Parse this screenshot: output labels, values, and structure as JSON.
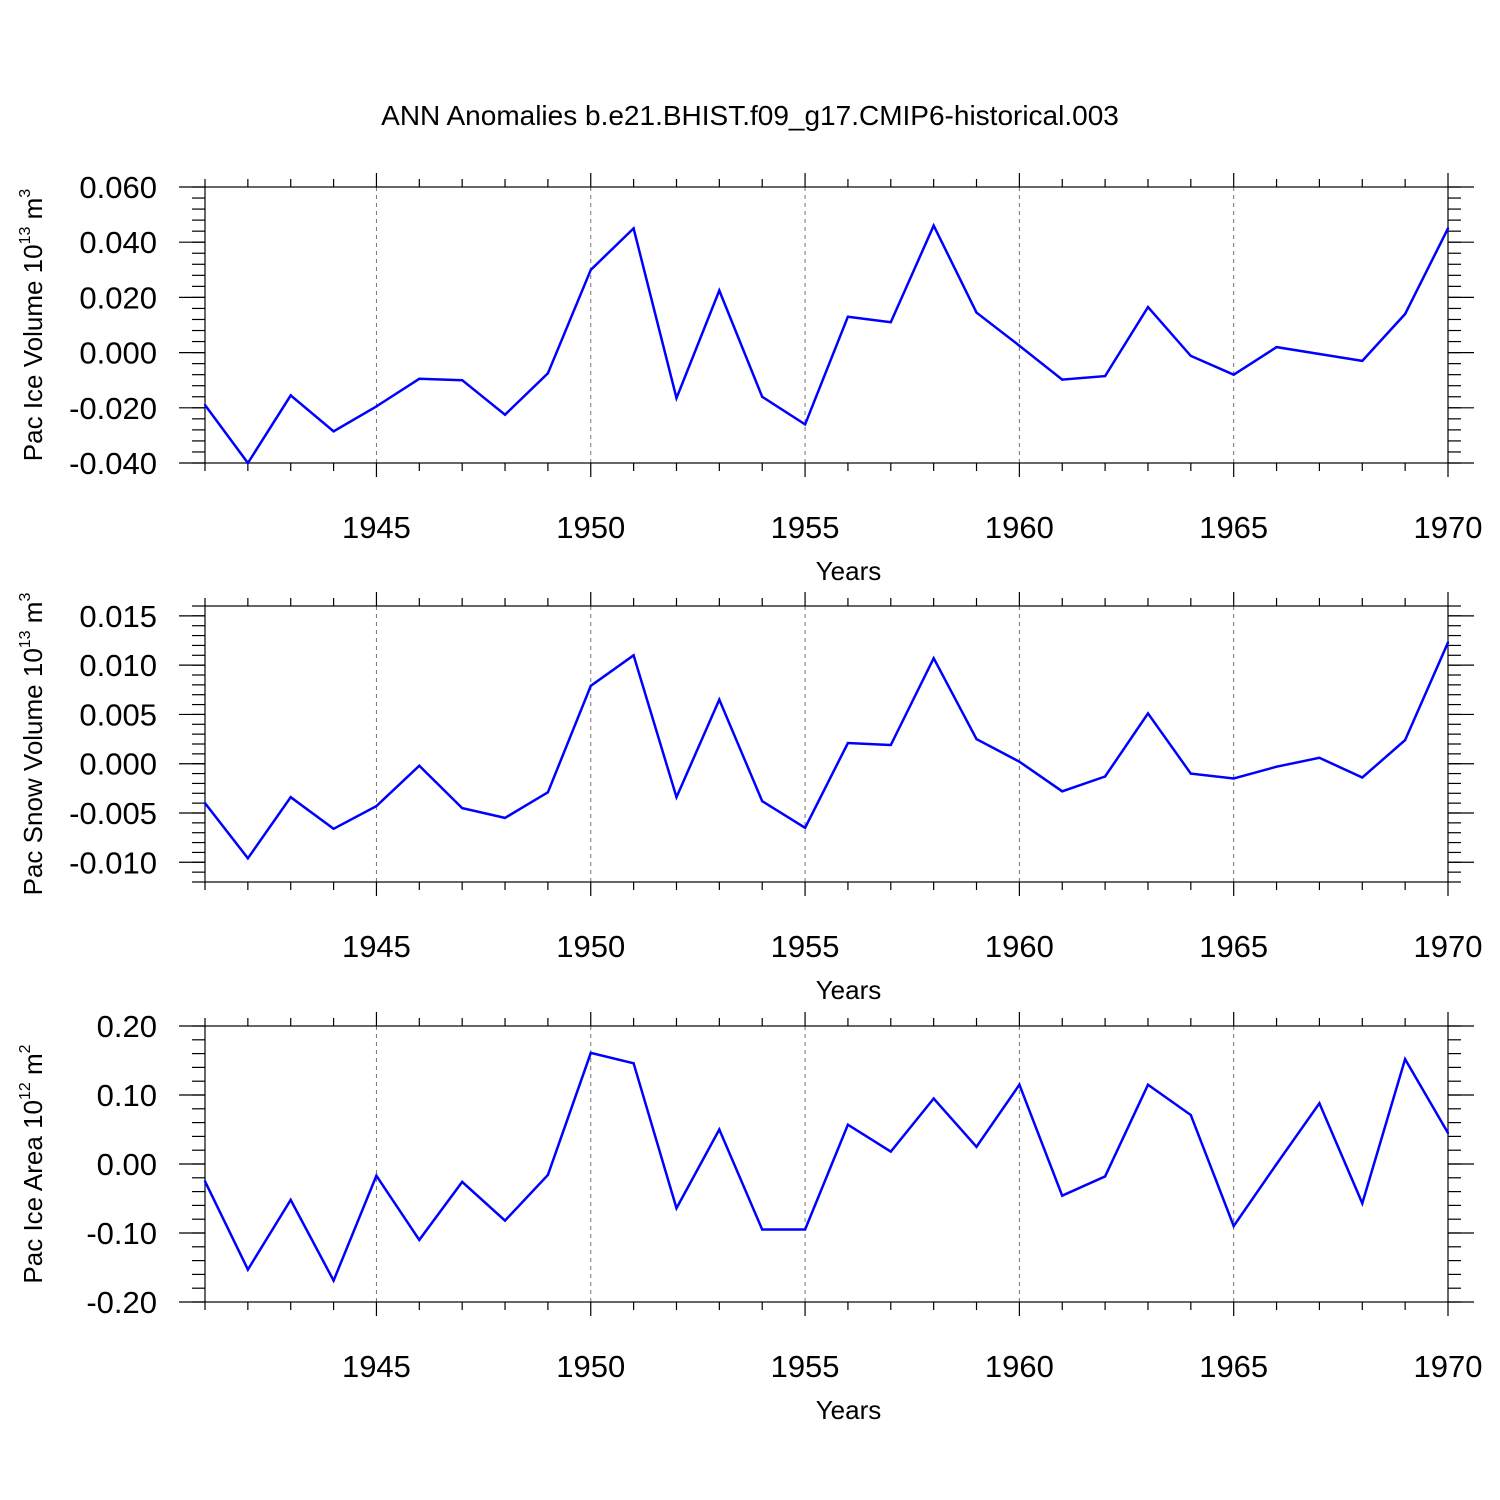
{
  "title": "ANN Anomalies b.e21.BHIST.f09_g17.CMIP6-historical.003",
  "colors": {
    "line": "#0000ff",
    "axes": "#000000",
    "background": "#ffffff"
  },
  "chart_data": [
    {
      "type": "line",
      "id": "ice-volume",
      "ylabel_main": "Pac Ice Volume 10",
      "ylabel_sup": "13",
      "ylabel_unit": " m",
      "ylabel_unit_sup": "3",
      "xlabel": "Years",
      "xlim": [
        1941,
        1970
      ],
      "ylim": [
        -0.04,
        0.06
      ],
      "xticks": [
        1945,
        1950,
        1955,
        1960,
        1965,
        1970
      ],
      "xtick_labels": [
        "1945",
        "1950",
        "1955",
        "1960",
        "1965",
        "1970"
      ],
      "yticks": [
        -0.04,
        -0.02,
        0.0,
        0.02,
        0.04,
        0.06
      ],
      "ytick_labels": [
        "-0.040",
        "-0.020",
        "0.000",
        "0.020",
        "0.040",
        "0.060"
      ],
      "x": [
        1941,
        1942,
        1943,
        1944,
        1945,
        1946,
        1947,
        1948,
        1949,
        1950,
        1951,
        1952,
        1953,
        1954,
        1955,
        1956,
        1957,
        1958,
        1959,
        1960,
        1961,
        1962,
        1963,
        1964,
        1965,
        1966,
        1967,
        1968,
        1969,
        1970
      ],
      "values": [
        -0.019,
        -0.04,
        -0.0155,
        -0.0285,
        -0.0195,
        -0.0095,
        -0.01,
        -0.0225,
        -0.0075,
        0.03,
        0.045,
        -0.0165,
        0.0225,
        -0.016,
        -0.026,
        0.013,
        0.011,
        0.046,
        0.0145,
        0.0025,
        -0.0098,
        -0.0085,
        0.0165,
        -0.0012,
        -0.008,
        0.002,
        -0.0005,
        -0.003,
        0.014,
        0.045
      ]
    },
    {
      "type": "line",
      "id": "snow-volume",
      "ylabel_main": "Pac Snow Volume 10",
      "ylabel_sup": "13",
      "ylabel_unit": " m",
      "ylabel_unit_sup": "3",
      "xlabel": "Years",
      "xlim": [
        1941,
        1970
      ],
      "ylim": [
        -0.012,
        0.016
      ],
      "xticks": [
        1945,
        1950,
        1955,
        1960,
        1965,
        1970
      ],
      "xtick_labels": [
        "1945",
        "1950",
        "1955",
        "1960",
        "1965",
        "1970"
      ],
      "yticks": [
        -0.01,
        -0.005,
        0.0,
        0.005,
        0.01,
        0.015
      ],
      "ytick_labels": [
        "-0.010",
        "-0.005",
        "0.000",
        "0.005",
        "0.010",
        "0.015"
      ],
      "x": [
        1941,
        1942,
        1943,
        1944,
        1945,
        1946,
        1947,
        1948,
        1949,
        1950,
        1951,
        1952,
        1953,
        1954,
        1955,
        1956,
        1957,
        1958,
        1959,
        1960,
        1961,
        1962,
        1963,
        1964,
        1965,
        1966,
        1967,
        1968,
        1969,
        1970
      ],
      "values": [
        -0.004,
        -0.0096,
        -0.0034,
        -0.0066,
        -0.0043,
        -0.0002,
        -0.0045,
        -0.0055,
        -0.0029,
        0.0079,
        0.011,
        -0.0034,
        0.0065,
        -0.0038,
        -0.0065,
        0.0021,
        0.0019,
        0.0107,
        0.0025,
        0.0002,
        -0.0028,
        -0.0013,
        0.0051,
        -0.001,
        -0.0015,
        -0.0003,
        0.0006,
        -0.0014,
        0.0024,
        0.0123
      ]
    },
    {
      "type": "line",
      "id": "ice-area",
      "ylabel_main": "Pac Ice Area 10",
      "ylabel_sup": "12",
      "ylabel_unit": " m",
      "ylabel_unit_sup": "2",
      "xlabel": "Years",
      "xlim": [
        1941,
        1970
      ],
      "ylim": [
        -0.2,
        0.2
      ],
      "xticks": [
        1945,
        1950,
        1955,
        1960,
        1965,
        1970
      ],
      "xtick_labels": [
        "1945",
        "1950",
        "1955",
        "1960",
        "1965",
        "1970"
      ],
      "yticks": [
        -0.2,
        -0.1,
        0.0,
        0.1,
        0.2
      ],
      "ytick_labels": [
        "-0.20",
        "-0.10",
        "0.00",
        "0.10",
        "0.20"
      ],
      "x": [
        1941,
        1942,
        1943,
        1944,
        1945,
        1946,
        1947,
        1948,
        1949,
        1950,
        1951,
        1952,
        1953,
        1954,
        1955,
        1956,
        1957,
        1958,
        1959,
        1960,
        1961,
        1962,
        1963,
        1964,
        1965,
        1966,
        1967,
        1968,
        1969,
        1970
      ],
      "values": [
        -0.025,
        -0.153,
        -0.052,
        -0.169,
        -0.017,
        -0.11,
        -0.026,
        -0.082,
        -0.016,
        0.161,
        0.146,
        -0.064,
        0.05,
        -0.095,
        -0.095,
        0.057,
        0.018,
        0.095,
        0.025,
        0.115,
        -0.046,
        -0.018,
        0.115,
        0.071,
        -0.09,
        0.0,
        0.088,
        -0.057,
        0.152,
        0.045
      ]
    }
  ]
}
